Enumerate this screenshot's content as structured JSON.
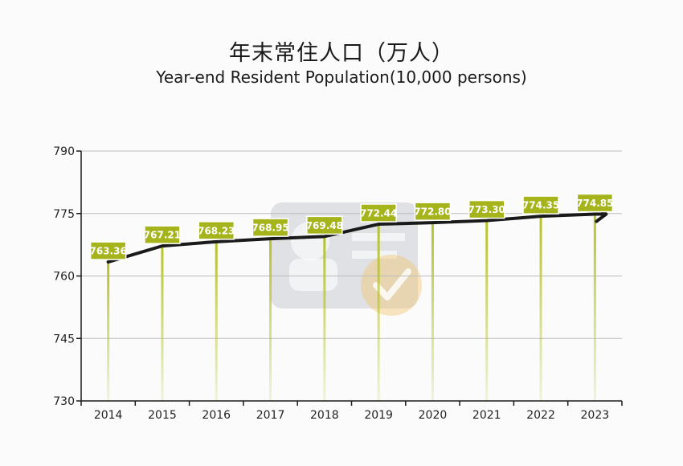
{
  "chart_data": {
    "type": "line",
    "title": "年末常住人口（万人）",
    "subtitle": "Year-end Resident Population(10,000 persons)",
    "categories": [
      "2014",
      "2015",
      "2016",
      "2017",
      "2018",
      "2019",
      "2020",
      "2021",
      "2022",
      "2023"
    ],
    "values": [
      763.36,
      767.21,
      768.23,
      768.95,
      769.48,
      772.44,
      772.8,
      773.3,
      774.35,
      774.85
    ],
    "value_labels": [
      "763.36",
      "767.21",
      "768.23",
      "768.95",
      "769.48",
      "772.44",
      "772.80",
      "773.30",
      "774.35",
      "774.85"
    ],
    "ylim": [
      730,
      790
    ],
    "yticks": [
      790,
      775,
      760,
      745,
      730
    ],
    "grid": true,
    "colors": {
      "line": "#1a1a1a",
      "label_box": "#a6b41c",
      "stem": "#b4c22a",
      "grid": "#bcbcbc",
      "axis": "#1a1a1a"
    }
  }
}
